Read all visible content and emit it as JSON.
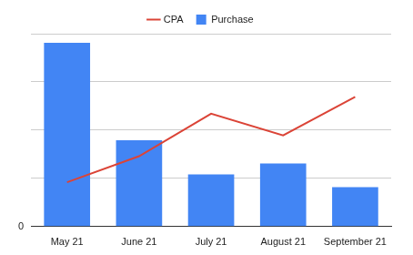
{
  "chart_data": {
    "type": "bar",
    "categories": [
      "May 21",
      "June 21",
      "July 21",
      "August 21",
      "September 21"
    ],
    "series": [
      {
        "name": "Purchase",
        "type": "bar",
        "color": "#4285f4",
        "values": [
          3.81,
          1.79,
          1.08,
          1.31,
          0.82
        ]
      },
      {
        "name": "CPA",
        "type": "line",
        "color": "#db4437",
        "marker": "none",
        "line_style": "solid",
        "values": [
          0.92,
          1.46,
          2.34,
          1.89,
          2.69
        ]
      }
    ],
    "ylim": [
      0,
      4
    ],
    "yticks": [
      0,
      {
        "value": 1,
        "label": null
      },
      {
        "value": 2,
        "label": null
      },
      {
        "value": 3,
        "label": null
      },
      {
        "value": 4,
        "label": null
      }
    ],
    "grid": true,
    "legend": "top"
  }
}
